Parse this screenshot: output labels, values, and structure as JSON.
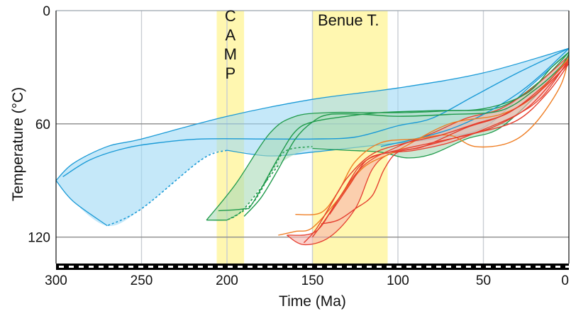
{
  "chart_data": {
    "type": "area",
    "xlabel": "Time (Ma)",
    "ylabel": "Temperature (°C)",
    "xlim": [
      300,
      0
    ],
    "ylim": [
      0,
      140
    ],
    "x_ticks": [
      300,
      250,
      200,
      150,
      100,
      50,
      0
    ],
    "y_ticks": [
      0,
      60,
      120
    ],
    "x_tick_labels": [
      "300",
      "250",
      "200",
      "150",
      "100",
      "50",
      "0"
    ],
    "y_tick_labels": [
      "0",
      "60",
      "120"
    ],
    "grid": {
      "vertical": [
        250,
        200,
        150,
        100,
        50
      ],
      "horizontal": [
        60,
        120
      ]
    },
    "time_bands": [
      {
        "label": "C\nA\nM\nP",
        "from": 206,
        "to": 190,
        "color": "#fff7b0"
      },
      {
        "label": "Benue T.",
        "from": 150,
        "to": 106,
        "color": "#fff7b0"
      }
    ],
    "envelopes": [
      {
        "color": "#9fd8f5",
        "stroke": "#1a9ad6",
        "upper": [
          [
            300,
            90
          ],
          [
            290,
            81
          ],
          [
            270,
            72
          ],
          [
            250,
            68
          ],
          [
            200,
            56
          ],
          [
            150,
            47
          ],
          [
            100,
            41
          ],
          [
            50,
            33
          ],
          [
            0,
            20
          ]
        ],
        "lower": [
          [
            0,
            22
          ],
          [
            10,
            30
          ],
          [
            25,
            42
          ],
          [
            50,
            62
          ],
          [
            80,
            68
          ],
          [
            120,
            72
          ],
          [
            150,
            75
          ],
          [
            175,
            77
          ],
          [
            200,
            74
          ],
          [
            215,
            79
          ],
          [
            250,
            105
          ],
          [
            270,
            114
          ],
          [
            290,
            101
          ],
          [
            300,
            90
          ]
        ],
        "lower_dashed_span": [
          270,
          200
        ]
      },
      {
        "color": "#a8dbb7",
        "stroke": "#1f9a4b",
        "upper": [
          [
            212,
            111
          ],
          [
            195,
            92
          ],
          [
            175,
            65
          ],
          [
            160,
            56
          ],
          [
            140,
            54
          ],
          [
            120,
            54
          ],
          [
            95,
            54
          ],
          [
            70,
            53
          ],
          [
            40,
            51
          ],
          [
            15,
            36
          ],
          [
            0,
            22
          ]
        ],
        "lower": [
          [
            0,
            24
          ],
          [
            15,
            41
          ],
          [
            40,
            62
          ],
          [
            60,
            68
          ],
          [
            80,
            76
          ],
          [
            95,
            78
          ],
          [
            110,
            75
          ],
          [
            130,
            74
          ],
          [
            150,
            73
          ],
          [
            170,
            82
          ],
          [
            190,
            105
          ],
          [
            200,
            111
          ],
          [
            212,
            111
          ]
        ],
        "lower_dashed_span": [
          200,
          165
        ]
      },
      {
        "color": "#f8b4ad",
        "stroke": "#e53f2f",
        "upper": [
          [
            165,
            119
          ],
          [
            148,
            117
          ],
          [
            135,
            100
          ],
          [
            120,
            82
          ],
          [
            100,
            72
          ],
          [
            80,
            65
          ],
          [
            60,
            57
          ],
          [
            40,
            52
          ],
          [
            20,
            40
          ],
          [
            0,
            24
          ]
        ],
        "lower": [
          [
            0,
            26
          ],
          [
            15,
            45
          ],
          [
            30,
            55
          ],
          [
            50,
            63
          ],
          [
            70,
            70
          ],
          [
            90,
            74
          ],
          [
            105,
            76
          ],
          [
            115,
            84
          ],
          [
            125,
            105
          ],
          [
            140,
            120
          ],
          [
            155,
            124
          ],
          [
            165,
            119
          ]
        ],
        "lower_dashed_span": []
      }
    ],
    "paths": [
      {
        "color": "#1a9ad6",
        "dash": false,
        "points": [
          [
            296,
            88
          ],
          [
            280,
            79
          ],
          [
            260,
            73
          ],
          [
            240,
            70
          ],
          [
            215,
            68
          ],
          [
            175,
            68
          ],
          [
            150,
            68
          ],
          [
            125,
            67
          ],
          [
            100,
            61
          ],
          [
            80,
            57
          ],
          [
            55,
            45
          ],
          [
            30,
            33
          ],
          [
            0,
            20
          ]
        ]
      },
      {
        "color": "#1a9ad6",
        "dash": false,
        "points": [
          [
            110,
            72
          ],
          [
            90,
            68
          ],
          [
            70,
            63
          ],
          [
            50,
            55
          ],
          [
            30,
            44
          ],
          [
            15,
            33
          ],
          [
            0,
            20
          ]
        ]
      },
      {
        "color": "#1f9a4b",
        "dash": false,
        "points": [
          [
            205,
            106
          ],
          [
            190,
            105
          ],
          [
            185,
            102
          ],
          [
            170,
            78
          ],
          [
            160,
            64
          ],
          [
            150,
            59
          ],
          [
            130,
            56
          ],
          [
            110,
            54
          ],
          [
            80,
            53
          ],
          [
            50,
            52
          ],
          [
            25,
            44
          ],
          [
            10,
            30
          ],
          [
            0,
            22
          ]
        ]
      },
      {
        "color": "#1f9a4b",
        "dash": false,
        "points": [
          [
            190,
            109
          ],
          [
            180,
            99
          ],
          [
            170,
            84
          ],
          [
            160,
            68
          ],
          [
            150,
            59
          ],
          [
            140,
            55
          ],
          [
            120,
            55
          ],
          [
            100,
            56
          ],
          [
            70,
            55
          ],
          [
            40,
            53
          ],
          [
            20,
            42
          ],
          [
            5,
            30
          ],
          [
            0,
            23
          ]
        ]
      },
      {
        "color": "#1f9a4b",
        "dash": true,
        "points": [
          [
            200,
            111
          ],
          [
            185,
            102
          ],
          [
            172,
            82
          ],
          [
            165,
            74
          ],
          [
            150,
            72
          ]
        ]
      },
      {
        "color": "#ef7d22",
        "dash": false,
        "points": [
          [
            160,
            108
          ],
          [
            145,
            107
          ],
          [
            135,
            96
          ],
          [
            125,
            80
          ],
          [
            110,
            70
          ],
          [
            90,
            68
          ],
          [
            70,
            66
          ],
          [
            55,
            72
          ],
          [
            35,
            70
          ],
          [
            20,
            60
          ],
          [
            5,
            40
          ],
          [
            0,
            24
          ]
        ]
      },
      {
        "color": "#ef7d22",
        "dash": false,
        "points": [
          [
            170,
            119
          ],
          [
            160,
            117
          ],
          [
            150,
            115
          ],
          [
            135,
            100
          ],
          [
            120,
            83
          ],
          [
            100,
            74
          ],
          [
            70,
            60
          ],
          [
            40,
            55
          ],
          [
            20,
            45
          ],
          [
            0,
            25
          ]
        ]
      },
      {
        "color": "#e53f2f",
        "dash": false,
        "points": [
          [
            155,
            123
          ],
          [
            148,
            116
          ],
          [
            140,
            104
          ],
          [
            130,
            89
          ],
          [
            115,
            76
          ],
          [
            95,
            70
          ],
          [
            75,
            66
          ],
          [
            55,
            60
          ],
          [
            35,
            54
          ],
          [
            15,
            40
          ],
          [
            0,
            26
          ]
        ]
      },
      {
        "color": "#e53f2f",
        "dash": false,
        "points": [
          [
            150,
            120
          ],
          [
            142,
            110
          ],
          [
            132,
            96
          ],
          [
            122,
            82
          ],
          [
            110,
            76
          ],
          [
            90,
            73
          ],
          [
            65,
            67
          ],
          [
            45,
            62
          ],
          [
            25,
            52
          ],
          [
            10,
            38
          ],
          [
            0,
            27
          ]
        ]
      },
      {
        "color": "#e53f2f",
        "dash": false,
        "points": [
          [
            145,
            113
          ],
          [
            135,
            111
          ],
          [
            125,
            105
          ],
          [
            115,
            98
          ],
          [
            108,
            84
          ],
          [
            100,
            75
          ],
          [
            85,
            72
          ],
          [
            60,
            62
          ],
          [
            40,
            56
          ],
          [
            20,
            45
          ],
          [
            0,
            28
          ]
        ]
      },
      {
        "color": "#e53f2f",
        "dash": false,
        "points": [
          [
            140,
            108
          ],
          [
            128,
            92
          ],
          [
            118,
            79
          ],
          [
            105,
            75
          ],
          [
            80,
            70
          ],
          [
            55,
            65
          ],
          [
            30,
            58
          ],
          [
            12,
            43
          ],
          [
            0,
            28
          ]
        ]
      }
    ]
  },
  "labels": {
    "camp": "C\nA\nM\nP",
    "benue": "Benue T.",
    "xlabel": "Time (Ma)",
    "ylabel": "Temperature (°C)"
  }
}
